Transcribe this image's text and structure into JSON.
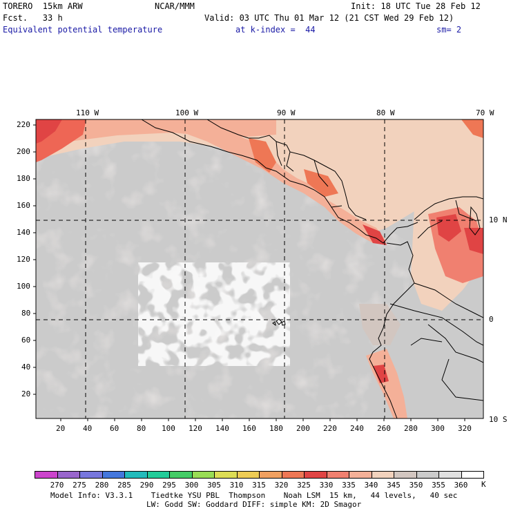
{
  "header": {
    "model": "TORERO  15km ARW",
    "center": "NCAR/MMM",
    "init": "Init: 18 UTC Tue 28 Feb 12",
    "forecast": "Fcst.   33 h",
    "valid": "Valid: 03 UTC Thu 01 Mar 12 (21 CST Wed 29 Feb 12)",
    "field": "Equivalent potential temperature",
    "level": "at k-index =  44",
    "smoothing": "sm= 2"
  },
  "map": {
    "top_longitude_labels": [
      "110 W",
      "100 W",
      "90 W",
      "80 W",
      "70 W"
    ],
    "right_latitude_labels": [
      "10 N",
      "0",
      "10 S"
    ],
    "left_grid_ticks": [
      "220",
      "200",
      "180",
      "160",
      "140",
      "120",
      "100",
      "80",
      "60",
      "40",
      "20"
    ],
    "bottom_grid_ticks": [
      "20",
      "40",
      "60",
      "80",
      "100",
      "120",
      "140",
      "160",
      "180",
      "200",
      "220",
      "240",
      "260",
      "280",
      "300",
      "320"
    ]
  },
  "colorbar": {
    "levels": [
      "270",
      "275",
      "280",
      "285",
      "290",
      "295",
      "300",
      "305",
      "310",
      "315",
      "320",
      "325",
      "330",
      "335",
      "340",
      "345",
      "350",
      "355",
      "360"
    ],
    "unit": "K",
    "colors": [
      "#cc44cc",
      "#9966cc",
      "#7777dd",
      "#4477dd",
      "#22bbbb",
      "#22cc99",
      "#44cc66",
      "#99dd55",
      "#dddd55",
      "#eecc55",
      "#f0a060",
      "#ee7755",
      "#e04444",
      "#f08070",
      "#f4b098",
      "#f2d2bd",
      "#d2c6c0",
      "#cbcbcb",
      "#e0e0e0",
      "#ffffff"
    ]
  },
  "footer": {
    "line1": "Model Info: V3.3.1    Tiedtke YSU PBL  Thompson    Noah LSM  15 km,   44 levels,   40 sec",
    "line2": "LW: Godd SW: Goddard DIFF: simple KM: 2D Smagor"
  }
}
